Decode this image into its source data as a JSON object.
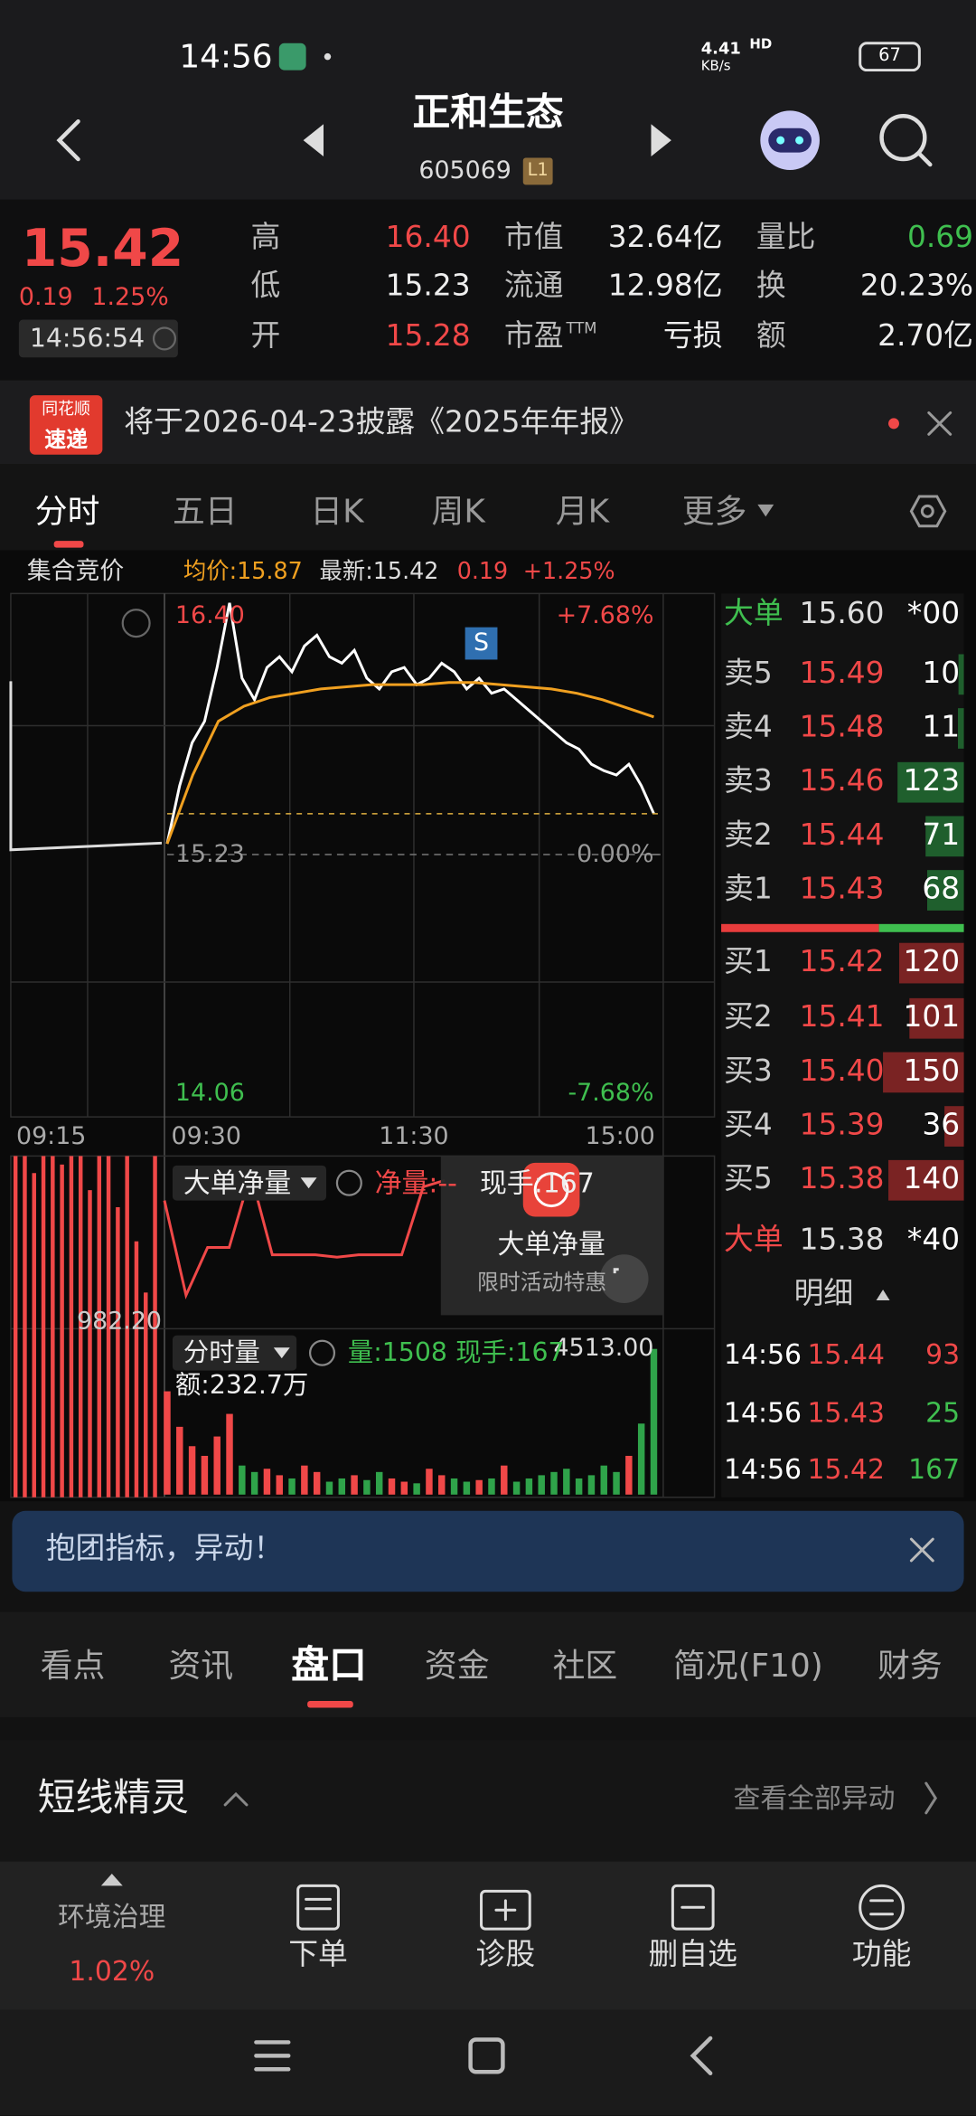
{
  "status": {
    "time": "14:56",
    "speed": "4.41",
    "speed_unit": "KB/s",
    "hd": "HD",
    "battery": "67"
  },
  "header": {
    "title": "正和生态",
    "code": "605069",
    "level": "L1"
  },
  "quote": {
    "price": "15.42",
    "change": "0.19",
    "change_pct": "1.25%",
    "time": "14:56:54"
  },
  "stats": [
    [
      {
        "label": "高",
        "value": "16.40",
        "color": "#f04848"
      },
      {
        "label": "市值",
        "value": "32.64亿",
        "color": "#eeeeee"
      },
      {
        "label": "量比",
        "value": "0.69",
        "color": "#3fbf4f"
      }
    ],
    [
      {
        "label": "低",
        "value": "15.23",
        "color": "#eeeeee"
      },
      {
        "label": "流通",
        "value": "12.98亿",
        "color": "#eeeeee"
      },
      {
        "label": "换",
        "value": "20.23%",
        "color": "#eeeeee"
      }
    ],
    [
      {
        "label": "开",
        "value": "15.28",
        "color": "#f04848"
      },
      {
        "label": "市盈",
        "label_sup": "TTM",
        "value": "亏损",
        "color": "#eeeeee"
      },
      {
        "label": "额",
        "value": "2.70亿",
        "color": "#eeeeee"
      }
    ]
  ],
  "notice": {
    "badge_top": "同花顺",
    "badge_bottom": "速递",
    "text": "将于2026-04-23披露《2025年年报》"
  },
  "chart_tabs": [
    "分时",
    "五日",
    "日K",
    "周K",
    "月K",
    "更多"
  ],
  "chart_info": {
    "auction": "集合竞价",
    "avg": "均价:15.87",
    "latest": "最新:15.42",
    "change": "0.19",
    "change_pct": "+1.25%"
  },
  "chart_data": [
    {
      "type": "line",
      "x_labels": [
        "09:15",
        "09:30",
        "11:30",
        "15:00"
      ],
      "marker": "S",
      "series": [
        {
          "color": "#ffffff",
          "values": [
            15.28,
            15.55,
            15.75,
            15.85,
            16.1,
            16.4,
            16.05,
            15.95,
            16.1,
            16.15,
            16.08,
            16.2,
            16.25,
            16.15,
            16.12,
            16.18,
            16.05,
            16.0,
            16.08,
            16.1,
            16.02,
            16.05,
            16.12,
            16.08,
            16.0,
            16.05,
            15.98,
            16.0,
            15.95,
            15.9,
            15.85,
            15.8,
            15.75,
            15.72,
            15.65,
            15.62,
            15.6,
            15.65,
            15.55,
            15.42
          ]
        },
        {
          "color": "#f0a020",
          "values": [
            15.28,
            15.6,
            15.85,
            15.92,
            15.96,
            15.98,
            16.0,
            16.01,
            16.02,
            16.02,
            16.02,
            16.03,
            16.03,
            16.02,
            16.01,
            16.0,
            15.98,
            15.95,
            15.91,
            15.87
          ]
        }
      ],
      "ylim": [
        14.06,
        16.4
      ],
      "yticks": [
        {
          "value": 16.4,
          "label": "16.40"
        },
        {
          "value": 15.23,
          "label": "15.23"
        },
        {
          "value": 14.06,
          "label": "14.06"
        }
      ],
      "y2lim": [
        -7.68,
        7.68
      ],
      "y2ticks": [
        {
          "value": 7.68,
          "label": "+7.68%"
        },
        {
          "value": 0,
          "label": "0.00%"
        },
        {
          "value": -7.68,
          "label": "-7.68%"
        }
      ]
    },
    {
      "type": "bar",
      "up_color": "#f04848",
      "down_color": "#2fa34a",
      "values": [
        3200,
        2100,
        1500,
        1200,
        1800,
        2500,
        900,
        700,
        800,
        600,
        500,
        900,
        700,
        400,
        500,
        600,
        450,
        700,
        500,
        400,
        350,
        800,
        600,
        500,
        400,
        450,
        500,
        900,
        400,
        500,
        600,
        700,
        800,
        500,
        600,
        900,
        700,
        1200,
        2200,
        4513
      ],
      "ylim": [
        0,
        4513
      ],
      "yticks": [
        {
          "value": 4513,
          "label": "4513.00"
        }
      ]
    },
    {
      "type": "line",
      "color": "#f04848",
      "values": [
        50,
        -67,
        -8,
        -8,
        83,
        -17,
        -17,
        -17,
        -20,
        -17,
        -17,
        -17,
        67,
        75
      ],
      "ylim": [
        -100,
        100
      ]
    },
    {
      "type": "bar",
      "color": "#f04848",
      "values": [
        2000,
        2000,
        1900,
        2000,
        2000,
        1950,
        2000,
        2000,
        1800,
        2000,
        2000,
        1700,
        2000,
        1500,
        1200,
        2000
      ],
      "ylim": [
        0,
        2000
      ],
      "yticks": [
        {
          "value": 982.2,
          "label": "982.20"
        }
      ]
    }
  ],
  "order_book": {
    "top_big": {
      "label": "大单",
      "price": "15.60",
      "volume": "*00"
    },
    "asks": [
      {
        "label": "卖5",
        "price": "15.49",
        "volume": 10
      },
      {
        "label": "卖4",
        "price": "15.48",
        "volume": 11
      },
      {
        "label": "卖3",
        "price": "15.46",
        "volume": 123
      },
      {
        "label": "卖2",
        "price": "15.44",
        "volume": 71
      },
      {
        "label": "卖1",
        "price": "15.43",
        "volume": 68
      }
    ],
    "bids": [
      {
        "label": "买1",
        "price": "15.42",
        "volume": 120
      },
      {
        "label": "买2",
        "price": "15.41",
        "volume": 101
      },
      {
        "label": "买3",
        "price": "15.40",
        "volume": 150
      },
      {
        "label": "买4",
        "price": "15.39",
        "volume": 36
      },
      {
        "label": "买5",
        "price": "15.38",
        "volume": 140
      }
    ],
    "bottom_big": {
      "label": "大单",
      "price": "15.38",
      "volume": "*40"
    },
    "detail_title": "明细",
    "details": [
      {
        "time": "14:56",
        "price": "15.44",
        "volume": 93,
        "color": "#f04848"
      },
      {
        "time": "14:56",
        "price": "15.43",
        "volume": 25,
        "color": "#3fbf4f"
      },
      {
        "time": "14:56",
        "price": "15.42",
        "volume": 167,
        "color": "#3fbf4f"
      }
    ]
  },
  "net_panel": {
    "title": "大单净量",
    "net": "净量:--",
    "hand": "现手:167"
  },
  "popup": {
    "title": "大单净量",
    "subtitle": "限时活动特惠"
  },
  "volume_panel": {
    "title": "分时量",
    "volume": "量:1508",
    "hand": "现手:167",
    "amount": "额:232.7万"
  },
  "banner": "抱团指标，异动！",
  "tabs": [
    "看点",
    "资讯",
    "盘口",
    "资金",
    "社区",
    "简况(F10)",
    "财务"
  ],
  "section": {
    "title": "短线精灵",
    "link": "查看全部异动"
  },
  "nav": {
    "sector": "环境治理",
    "sector_pct": "1.02%",
    "items": [
      "下单",
      "诊股",
      "删自选",
      "功能"
    ]
  }
}
